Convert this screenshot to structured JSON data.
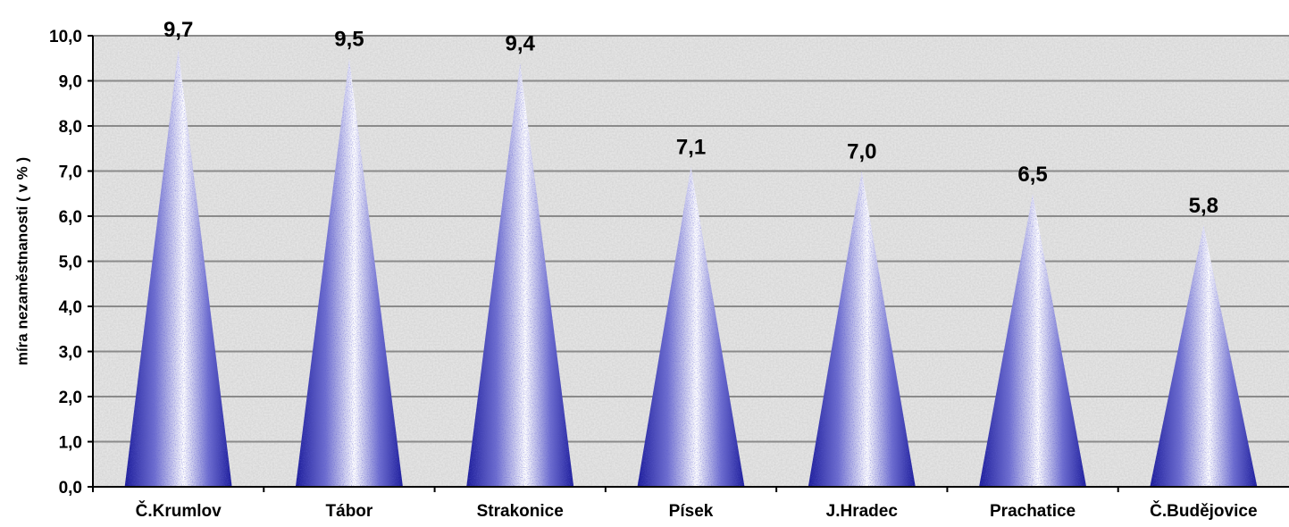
{
  "chart_data": {
    "type": "bar",
    "bar_shape": "cone",
    "title": "",
    "xlabel": "",
    "ylabel": "míra nezaměstnanosti ( v % )",
    "ylim": [
      0,
      10
    ],
    "yticks": [
      "0,0",
      "1,0",
      "2,0",
      "3,0",
      "4,0",
      "5,0",
      "6,0",
      "7,0",
      "8,0",
      "9,0",
      "10,0"
    ],
    "grid": true,
    "legend": "none",
    "categories": [
      "Č.Krumlov",
      "Tábor",
      "Strakonice",
      "Písek",
      "J.Hradec",
      "Prachatice",
      "Č.Budějovice"
    ],
    "values": [
      9.7,
      9.5,
      9.4,
      7.1,
      7.0,
      6.5,
      5.8
    ],
    "data_labels": [
      "9,7",
      "9,5",
      "9,4",
      "7,1",
      "7,0",
      "6,5",
      "5,8"
    ],
    "colors": {
      "cone_dark": "#1c1c9a",
      "cone_mid": "#6f6fd0",
      "cone_light": "#ffffff",
      "plot_background": "#e4e4e4",
      "gridline": "#8a8a8a",
      "axis": "#000000"
    }
  }
}
